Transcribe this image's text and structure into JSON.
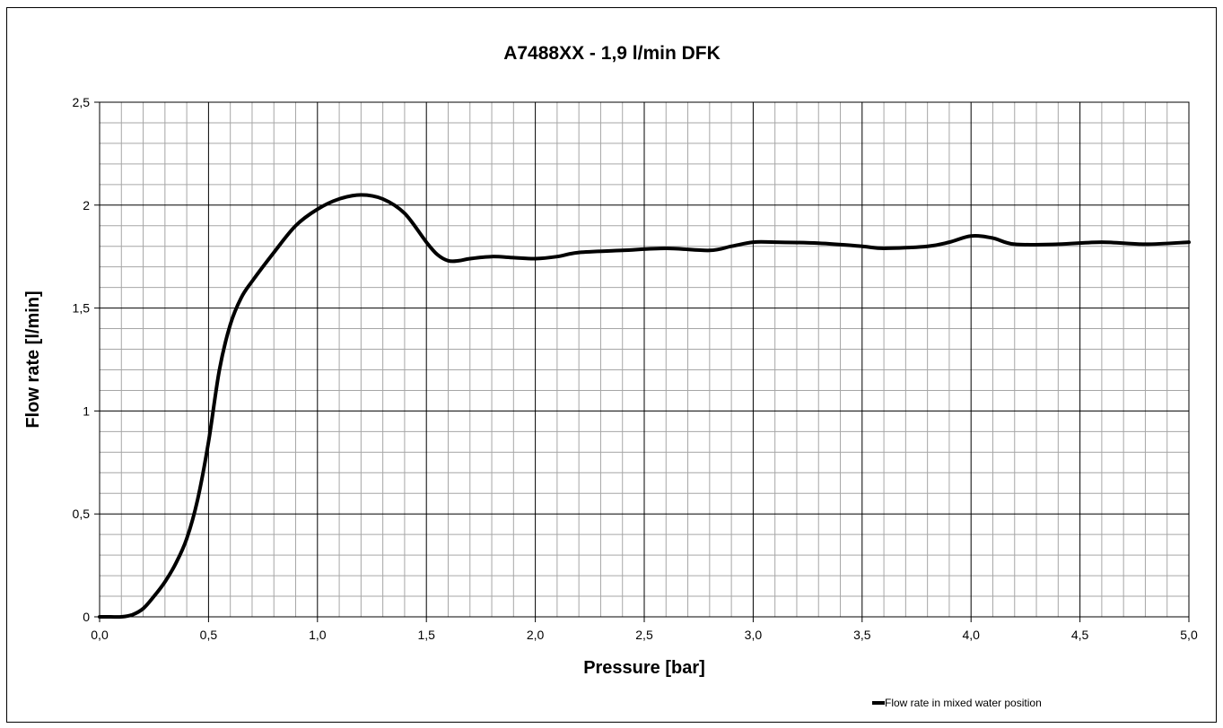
{
  "chart_data": {
    "type": "line",
    "title": "A7488XX - 1,9 l/min DFK",
    "xlabel": "Pressure  [bar]",
    "ylabel": "Flow rate [l/min]",
    "xlim": [
      0,
      5
    ],
    "ylim": [
      0,
      2.5
    ],
    "x_major_step": 0.5,
    "x_minor_step": 0.1,
    "y_major_step": 0.5,
    "y_minor_step": 0.1,
    "x_tick_labels": [
      "0,0",
      "0,5",
      "1,0",
      "1,5",
      "2,0",
      "2,5",
      "3,0",
      "3,5",
      "4,0",
      "4,5",
      "5,0"
    ],
    "y_tick_labels": [
      "0",
      "0,5",
      "1",
      "1,5",
      "2",
      "2,5"
    ],
    "grid": true,
    "legend_position": "bottom-right",
    "series": [
      {
        "name": "Flow rate in mixed water position",
        "color": "#000000",
        "x": [
          0.0,
          0.05,
          0.1,
          0.15,
          0.2,
          0.25,
          0.3,
          0.35,
          0.4,
          0.45,
          0.5,
          0.55,
          0.6,
          0.65,
          0.7,
          0.8,
          0.9,
          1.0,
          1.1,
          1.2,
          1.3,
          1.4,
          1.5,
          1.55,
          1.6,
          1.65,
          1.7,
          1.8,
          1.9,
          2.0,
          2.1,
          2.2,
          2.4,
          2.6,
          2.8,
          2.9,
          3.0,
          3.1,
          3.3,
          3.5,
          3.6,
          3.8,
          3.9,
          4.0,
          4.1,
          4.2,
          4.4,
          4.6,
          4.8,
          5.0
        ],
        "y": [
          0.0,
          0.0,
          0.0,
          0.01,
          0.04,
          0.1,
          0.17,
          0.26,
          0.38,
          0.57,
          0.85,
          1.2,
          1.42,
          1.55,
          1.63,
          1.77,
          1.9,
          1.98,
          2.03,
          2.05,
          2.03,
          1.96,
          1.82,
          1.76,
          1.73,
          1.73,
          1.74,
          1.75,
          1.745,
          1.74,
          1.75,
          1.77,
          1.78,
          1.79,
          1.78,
          1.8,
          1.82,
          1.82,
          1.815,
          1.8,
          1.79,
          1.8,
          1.82,
          1.85,
          1.84,
          1.81,
          1.81,
          1.82,
          1.81,
          1.82
        ]
      }
    ]
  }
}
